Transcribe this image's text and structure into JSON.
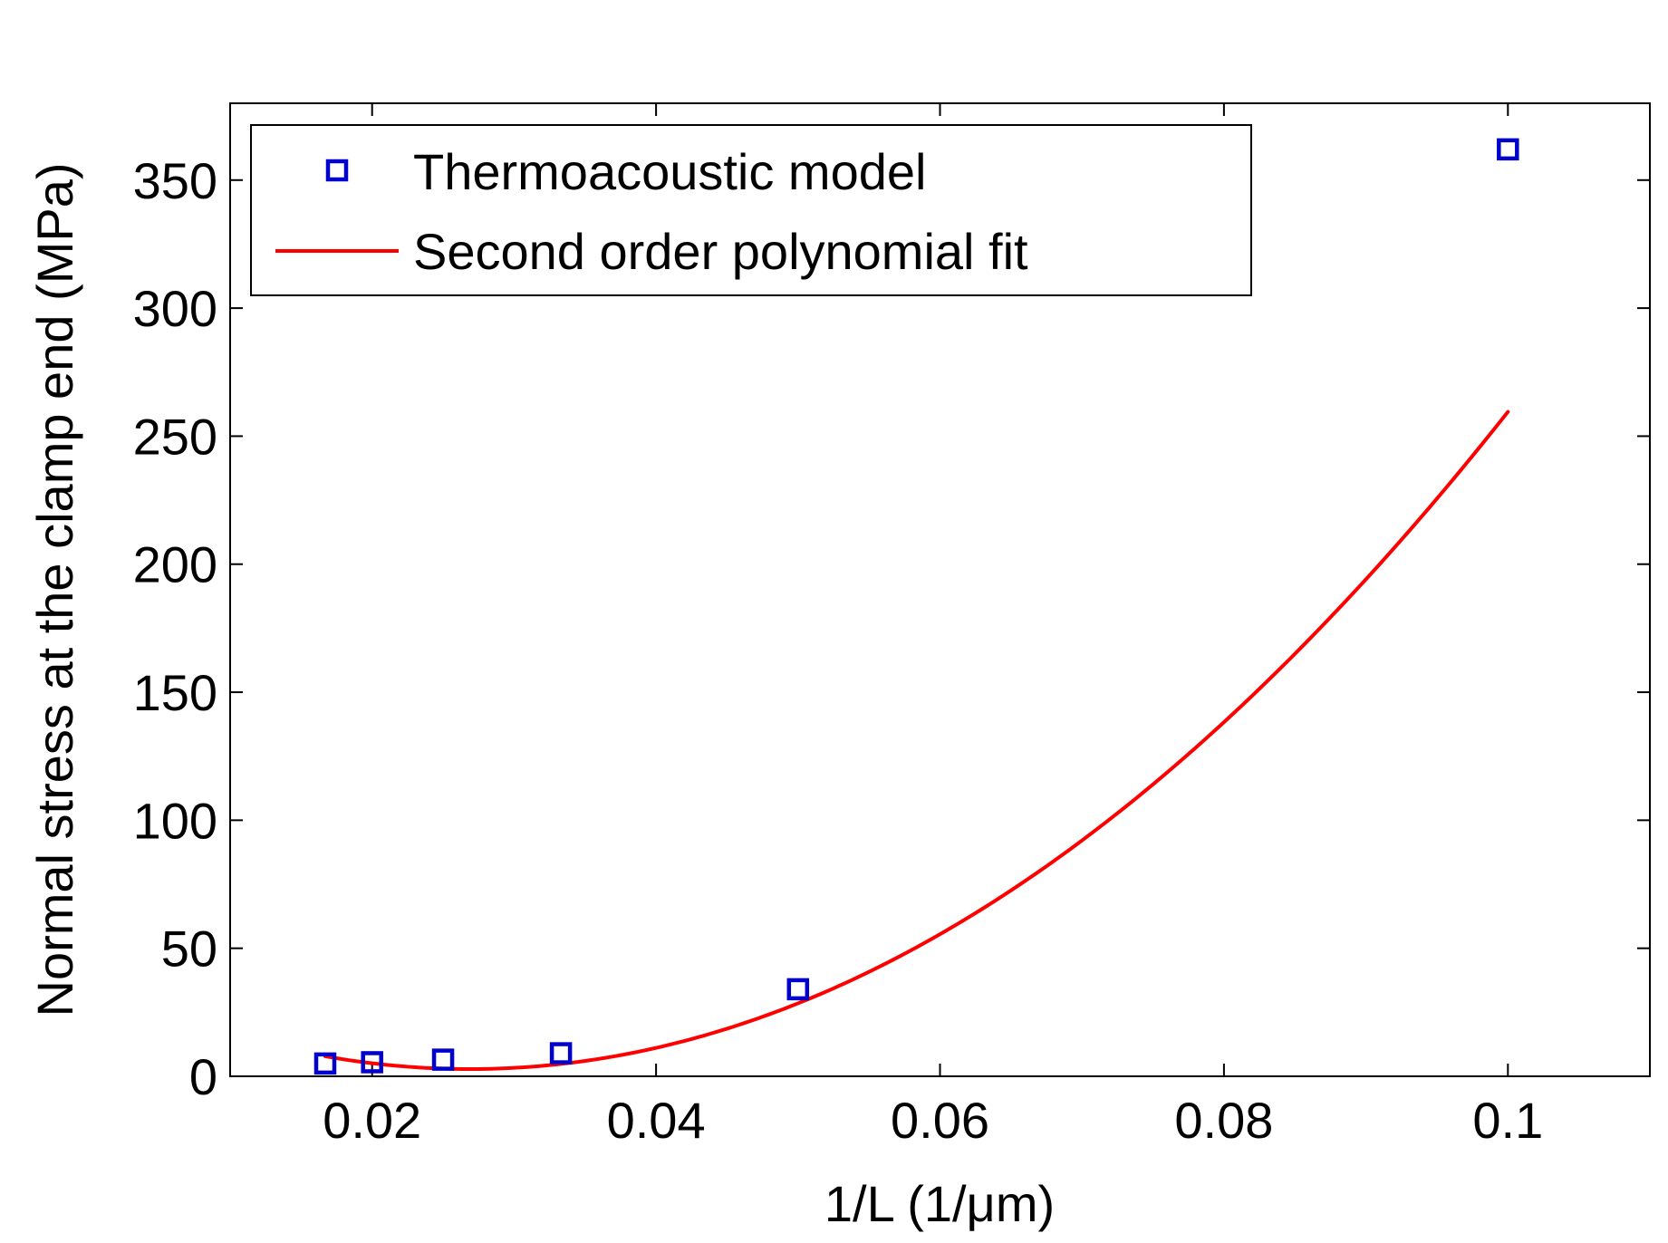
{
  "chart_data": {
    "type": "scatter",
    "title": "",
    "xlabel": "1/L (1/μm)",
    "ylabel": "Normal stress at the clamp end (MPa)",
    "xlim": [
      0.01,
      0.11
    ],
    "ylim": [
      0,
      380
    ],
    "xticks": [
      0.02,
      0.04,
      0.06,
      0.08,
      0.1
    ],
    "xtick_labels": [
      "0.02",
      "0.04",
      "0.06",
      "0.08",
      "0.1"
    ],
    "yticks": [
      0,
      50,
      100,
      150,
      200,
      250,
      300,
      350
    ],
    "ytick_labels": [
      "0",
      "50",
      "100",
      "150",
      "200",
      "250",
      "300",
      "350"
    ],
    "grid": false,
    "legend_position": "top-left",
    "series": [
      {
        "name": "Thermoacoustic model",
        "kind": "markers",
        "marker": "square",
        "color": "#0000cc",
        "x": [
          0.0167,
          0.02,
          0.025,
          0.0333,
          0.05,
          0.1
        ],
        "y": [
          5,
          5.5,
          6.5,
          9,
          34,
          362
        ]
      },
      {
        "name": "Second order polynomial fit",
        "kind": "line",
        "color": "#ff0000",
        "fit": "quadratic",
        "coefficients": [
          48000,
          -2580,
          37.5
        ],
        "x_range": [
          0.0167,
          0.1
        ]
      }
    ]
  }
}
